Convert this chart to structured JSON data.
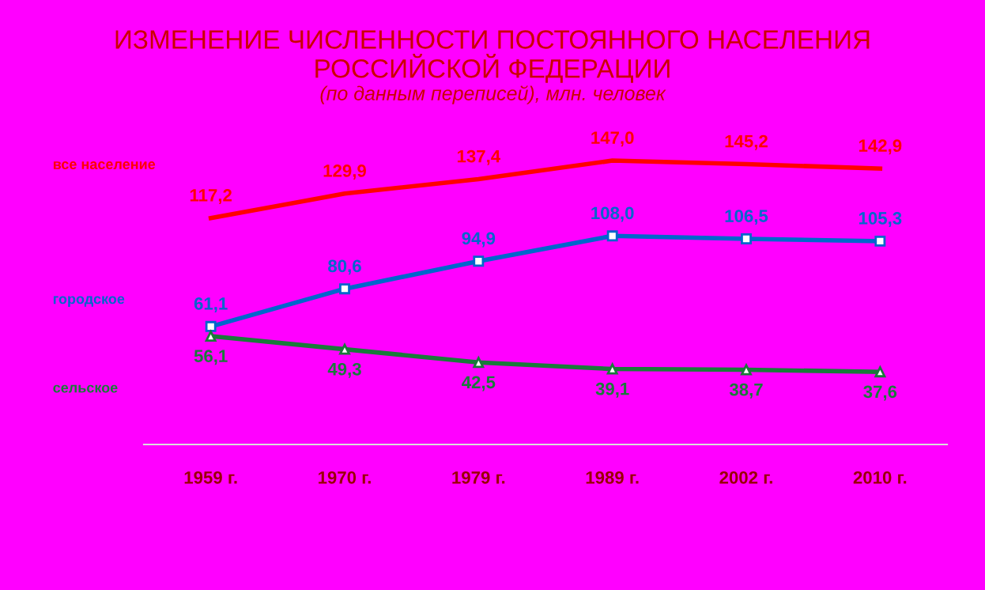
{
  "chart_data": {
    "type": "line",
    "title": "ИЗМЕНЕНИЕ ЧИСЛЕННОСТИ ПОСТОЯННОГО НАСЕЛЕНИЯ\nРОССИЙСКОЙ ФЕДЕРАЦИИ",
    "subtitle": "(по данным переписей), млн. человек",
    "categories": [
      "1959 г.",
      "1970 г.",
      "1979 г.",
      "1989 г.",
      "2002 г.",
      "2010 г."
    ],
    "series": [
      {
        "name": "все население",
        "color": "#ff0000",
        "marker": "none",
        "values": [
          117.2,
          129.9,
          137.4,
          147.0,
          145.2,
          142.9
        ],
        "value_labels": [
          "117,2",
          "129,9",
          "137,4",
          "147,0",
          "145,2",
          "142,9"
        ]
      },
      {
        "name": "городское",
        "color": "#0066cc",
        "marker": "square",
        "values": [
          61.1,
          80.6,
          94.9,
          108.0,
          106.5,
          105.3
        ],
        "value_labels": [
          "61,1",
          "80,6",
          "94,9",
          "108,0",
          "106,5",
          "105,3"
        ]
      },
      {
        "name": "сельское",
        "color": "#1a7a3a",
        "marker": "triangle",
        "values": [
          56.1,
          49.3,
          42.5,
          39.1,
          38.7,
          37.6
        ],
        "value_labels": [
          "56,1",
          "49,3",
          "42,5",
          "39,1",
          "38,7",
          "37,6"
        ]
      }
    ],
    "legend": false,
    "grid": false
  }
}
